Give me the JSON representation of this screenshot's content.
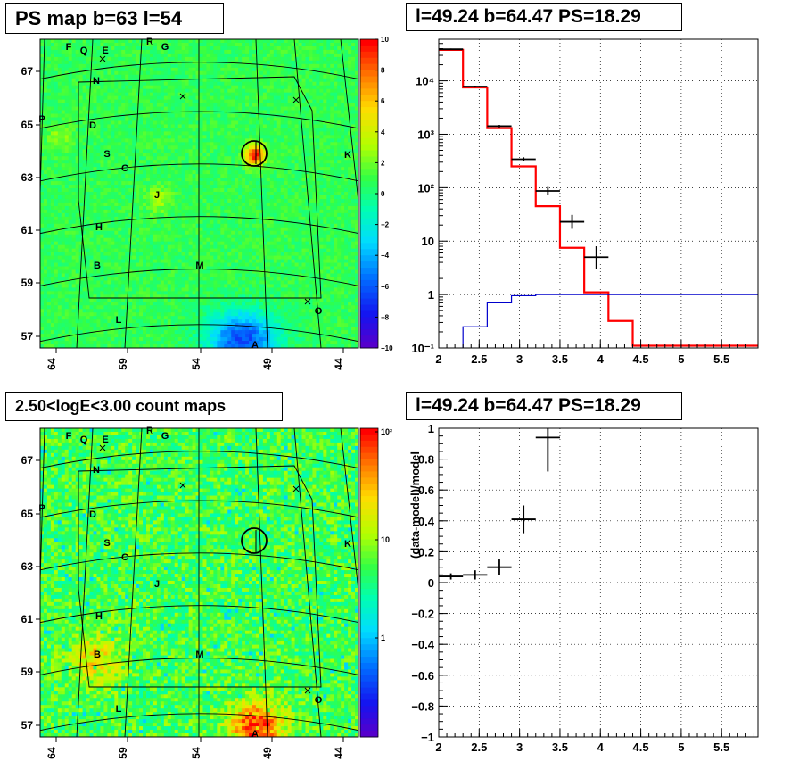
{
  "panels": {
    "ps_map": {
      "title": "PS map b=63 l=54",
      "x_ticks": [
        "64",
        "59",
        "54",
        "49",
        "44"
      ],
      "y_ticks": [
        "67",
        "65",
        "63",
        "61",
        "59",
        "57"
      ],
      "colorbar": {
        "ticks": [
          "10",
          "8",
          "6",
          "4",
          "2",
          "0",
          "−2",
          "−4",
          "−6",
          "−8",
          "−10"
        ],
        "range": [
          -10,
          10
        ],
        "scale": "linear"
      },
      "labels": [
        "F",
        "Q",
        "E",
        "R",
        "G",
        "N",
        "P",
        "D",
        "S",
        "C",
        "K",
        "J",
        "H",
        "B",
        "M",
        "L",
        "O",
        "A"
      ]
    },
    "count_map": {
      "title": "2.50<logE<3.00 count maps",
      "x_ticks": [
        "64",
        "59",
        "54",
        "49",
        "44"
      ],
      "y_ticks": [
        "67",
        "65",
        "63",
        "61",
        "59",
        "57"
      ],
      "colorbar": {
        "ticks": [
          "10²",
          "10",
          "1"
        ],
        "scale": "log"
      },
      "labels": [
        "F",
        "Q",
        "E",
        "R",
        "G",
        "N",
        "P",
        "D",
        "S",
        "C",
        "K",
        "J",
        "H",
        "B",
        "M",
        "L",
        "O",
        "A"
      ]
    },
    "spectrum": {
      "title": "l=49.24 b=64.47 PS=18.29"
    },
    "residual": {
      "title": "l=49.24 b=64.47 PS=18.29"
    }
  },
  "chart_data": [
    {
      "type": "heatmap",
      "title": "PS map b=63 l=54",
      "x_ticks": [
        64,
        59,
        54,
        49,
        44
      ],
      "y_ticks": [
        67,
        65,
        63,
        61,
        59,
        57
      ],
      "zlim": [
        -10,
        10
      ],
      "colors": {
        "low": "#5500cc",
        "mid": "#33ff55",
        "high": "#ff0000"
      },
      "features": [
        {
          "type": "hotspot",
          "l": 50.2,
          "b": 64.0,
          "value": 10,
          "circled": true
        },
        {
          "type": "coldspot",
          "l": 50.8,
          "b": 57.0,
          "value": -9
        }
      ]
    },
    {
      "type": "heatmap",
      "title": "2.50<logE<3.00 count maps",
      "x_ticks": [
        64,
        59,
        54,
        49,
        44
      ],
      "y_ticks": [
        67,
        65,
        63,
        61,
        59,
        57
      ],
      "zscale": "log",
      "colorbar_ticks": [
        "10²",
        "10",
        "1"
      ],
      "features": [
        {
          "type": "hotspot",
          "l": 50.8,
          "b": 56.8,
          "value": 100
        },
        {
          "type": "hotspot",
          "l": 61.0,
          "b": 59.6,
          "value": 30
        },
        {
          "type": "circle",
          "l": 50.2,
          "b": 63.9
        }
      ]
    },
    {
      "type": "line",
      "title": "l=49.24 b=64.47 PS=18.29",
      "xlim": [
        2,
        5.95
      ],
      "ylim": [
        0.1,
        60000
      ],
      "yscale": "log",
      "grid": true,
      "x_ticks": [
        "2",
        "2.5",
        "3",
        "3.5",
        "4",
        "4.5",
        "5",
        "5.5"
      ],
      "y_ticks": [
        "10⁻¹",
        "1",
        "10",
        "10²",
        "10³",
        "10⁴"
      ],
      "series": [
        {
          "color": "#ff0000",
          "style": "step",
          "bin_edges": [
            2.0,
            2.3,
            2.6,
            2.9,
            3.2,
            3.5,
            3.8,
            4.1,
            4.4,
            4.7,
            5.0,
            5.3,
            5.6,
            5.95
          ],
          "values": [
            38000,
            7500,
            1300,
            250,
            45,
            7.5,
            1.1,
            0.32,
            0.11,
            0.11,
            0.11,
            0.11,
            0.11
          ]
        },
        {
          "color": "#0000cc",
          "style": "step",
          "bin_edges": [
            2.3,
            2.6,
            2.9,
            3.2,
            3.5,
            3.8,
            4.1,
            4.4,
            4.7,
            5.0,
            5.3,
            5.6,
            5.95
          ],
          "values": [
            0.25,
            0.7,
            0.95,
            1.0,
            1.0,
            1.0,
            1.0,
            1.0,
            1.0,
            1.0,
            1.0,
            1.0
          ]
        },
        {
          "color": "#000000",
          "style": "errorbar",
          "points": [
            {
              "x": 2.15,
              "xerr": 0.15,
              "y": 39000,
              "ylo": 37800,
              "yhi": 40200
            },
            {
              "x": 2.45,
              "xerr": 0.15,
              "y": 7800,
              "ylo": 7500,
              "yhi": 8100
            },
            {
              "x": 2.75,
              "xerr": 0.15,
              "y": 1420,
              "ylo": 1350,
              "yhi": 1490
            },
            {
              "x": 3.05,
              "xerr": 0.15,
              "y": 340,
              "ylo": 310,
              "yhi": 370
            },
            {
              "x": 3.35,
              "xerr": 0.15,
              "y": 87,
              "ylo": 72,
              "yhi": 103
            },
            {
              "x": 3.65,
              "xerr": 0.15,
              "y": 23,
              "ylo": 17,
              "yhi": 31
            },
            {
              "x": 3.95,
              "xerr": 0.15,
              "y": 5,
              "ylo": 3,
              "yhi": 8
            }
          ]
        }
      ]
    },
    {
      "type": "scatter",
      "title": "l=49.24 b=64.47 PS=18.29",
      "ylabel": "(data-model)/model",
      "xlim": [
        2,
        5.95
      ],
      "ylim": [
        -1,
        1
      ],
      "grid": true,
      "x_ticks": [
        "2",
        "2.5",
        "3",
        "3.5",
        "4",
        "4.5",
        "5",
        "5.5"
      ],
      "y_ticks": [
        "−1",
        "−0.8",
        "−0.6",
        "−0.4",
        "−0.2",
        "0",
        "0.2",
        "0.4",
        "0.6",
        "0.8",
        "1"
      ],
      "series": [
        {
          "color": "#000000",
          "points": [
            {
              "x": 2.15,
              "xerr": 0.15,
              "y": 0.04,
              "ylo": 0.02,
              "yhi": 0.06
            },
            {
              "x": 2.45,
              "xerr": 0.15,
              "y": 0.05,
              "ylo": 0.02,
              "yhi": 0.08
            },
            {
              "x": 2.75,
              "xerr": 0.15,
              "y": 0.1,
              "ylo": 0.05,
              "yhi": 0.15
            },
            {
              "x": 3.05,
              "xerr": 0.15,
              "y": 0.41,
              "ylo": 0.32,
              "yhi": 0.5
            },
            {
              "x": 3.35,
              "xerr": 0.15,
              "y": 0.94,
              "ylo": 0.72,
              "yhi": 1.0
            }
          ]
        }
      ]
    }
  ]
}
